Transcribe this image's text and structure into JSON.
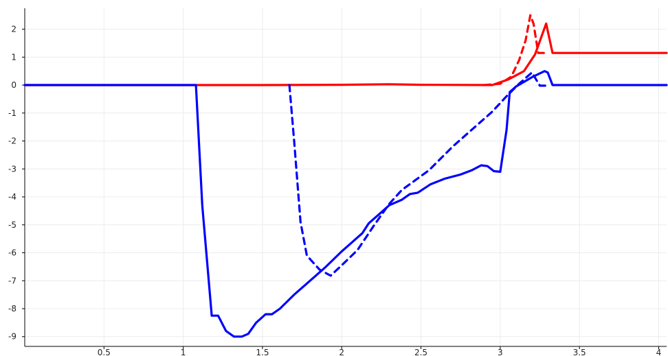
{
  "chart_data": {
    "type": "line",
    "title": "",
    "xlabel": "",
    "ylabel": "",
    "xlim": [
      0,
      4.05
    ],
    "ylim": [
      -9.35,
      2.75
    ],
    "grid": true,
    "legend": "none",
    "x_ticks": [
      {
        "value": 0.5,
        "label": "0.5"
      },
      {
        "value": 1,
        "label": "1"
      },
      {
        "value": 1.5,
        "label": "1.5"
      },
      {
        "value": 2,
        "label": "2"
      },
      {
        "value": 2.5,
        "label": "2.5"
      },
      {
        "value": 3,
        "label": "3"
      },
      {
        "value": 3.5,
        "label": "3.5"
      },
      {
        "value": 4,
        "label": "4"
      }
    ],
    "y_ticks": [
      {
        "value": 2,
        "label": "2"
      },
      {
        "value": 1,
        "label": "1"
      },
      {
        "value": 0,
        "label": "0"
      },
      {
        "value": -1,
        "label": "-1"
      },
      {
        "value": -2,
        "label": "-2"
      },
      {
        "value": -3,
        "label": "-3"
      },
      {
        "value": -4,
        "label": "-4"
      },
      {
        "value": -5,
        "label": "-5"
      },
      {
        "value": -6,
        "label": "-6"
      },
      {
        "value": -7,
        "label": "-7"
      },
      {
        "value": -8,
        "label": "-8"
      },
      {
        "value": -9,
        "label": "-9"
      }
    ],
    "series": [
      {
        "color": "#ff0000",
        "style": "solid",
        "points": [
          [
            0,
            0
          ],
          [
            1.1,
            0
          ],
          [
            1.5,
            0
          ],
          [
            2.0,
            0.01
          ],
          [
            2.3,
            0.03
          ],
          [
            2.5,
            0.01
          ],
          [
            2.95,
            0
          ],
          [
            3.05,
            0.2
          ],
          [
            3.15,
            0.5
          ],
          [
            3.22,
            1.1
          ],
          [
            3.29,
            2.2
          ],
          [
            3.33,
            1.15
          ],
          [
            4.05,
            1.15
          ]
        ]
      },
      {
        "color": "#ff0000",
        "style": "dashed",
        "points": [
          [
            2.9,
            0
          ],
          [
            3.0,
            0.05
          ],
          [
            3.07,
            0.3
          ],
          [
            3.12,
            0.9
          ],
          [
            3.16,
            1.6
          ],
          [
            3.19,
            2.5
          ],
          [
            3.21,
            2.2
          ],
          [
            3.24,
            1.15
          ],
          [
            3.28,
            1.15
          ]
        ]
      },
      {
        "color": "#0000ff",
        "style": "solid",
        "points": [
          [
            0,
            0
          ],
          [
            1.08,
            0
          ],
          [
            1.12,
            -4.3
          ],
          [
            1.18,
            -8.25
          ],
          [
            1.22,
            -8.25
          ],
          [
            1.27,
            -8.8
          ],
          [
            1.32,
            -9.0
          ],
          [
            1.37,
            -9.0
          ],
          [
            1.41,
            -8.9
          ],
          [
            1.46,
            -8.5
          ],
          [
            1.52,
            -8.2
          ],
          [
            1.56,
            -8.2
          ],
          [
            1.61,
            -8.0
          ],
          [
            1.7,
            -7.5
          ],
          [
            1.8,
            -7.0
          ],
          [
            1.9,
            -6.5
          ],
          [
            2.0,
            -5.95
          ],
          [
            2.1,
            -5.45
          ],
          [
            2.13,
            -5.3
          ],
          [
            2.17,
            -4.95
          ],
          [
            2.24,
            -4.6
          ],
          [
            2.3,
            -4.3
          ],
          [
            2.38,
            -4.1
          ],
          [
            2.43,
            -3.9
          ],
          [
            2.48,
            -3.85
          ],
          [
            2.56,
            -3.55
          ],
          [
            2.65,
            -3.35
          ],
          [
            2.75,
            -3.2
          ],
          [
            2.82,
            -3.05
          ],
          [
            2.88,
            -2.87
          ],
          [
            2.92,
            -2.9
          ],
          [
            2.96,
            -3.08
          ],
          [
            3.0,
            -3.1
          ],
          [
            3.04,
            -1.6
          ],
          [
            3.06,
            -0.25
          ],
          [
            3.1,
            -0.05
          ],
          [
            3.2,
            0.28
          ],
          [
            3.28,
            0.5
          ],
          [
            3.3,
            0.45
          ],
          [
            3.33,
            0
          ],
          [
            4.05,
            0
          ]
        ]
      },
      {
        "color": "#0000ff",
        "style": "dashed",
        "points": [
          [
            1.67,
            0
          ],
          [
            1.7,
            -2.0
          ],
          [
            1.74,
            -4.9
          ],
          [
            1.78,
            -6.1
          ],
          [
            1.86,
            -6.6
          ],
          [
            1.93,
            -6.82
          ],
          [
            2.0,
            -6.45
          ],
          [
            2.1,
            -5.9
          ],
          [
            2.2,
            -5.05
          ],
          [
            2.3,
            -4.25
          ],
          [
            2.38,
            -3.75
          ],
          [
            2.55,
            -3.05
          ],
          [
            2.7,
            -2.2
          ],
          [
            2.85,
            -1.45
          ],
          [
            2.95,
            -0.95
          ],
          [
            3.04,
            -0.4
          ],
          [
            3.12,
            0.05
          ],
          [
            3.2,
            0.45
          ],
          [
            3.25,
            -0.02
          ],
          [
            3.3,
            -0.02
          ]
        ]
      }
    ]
  }
}
